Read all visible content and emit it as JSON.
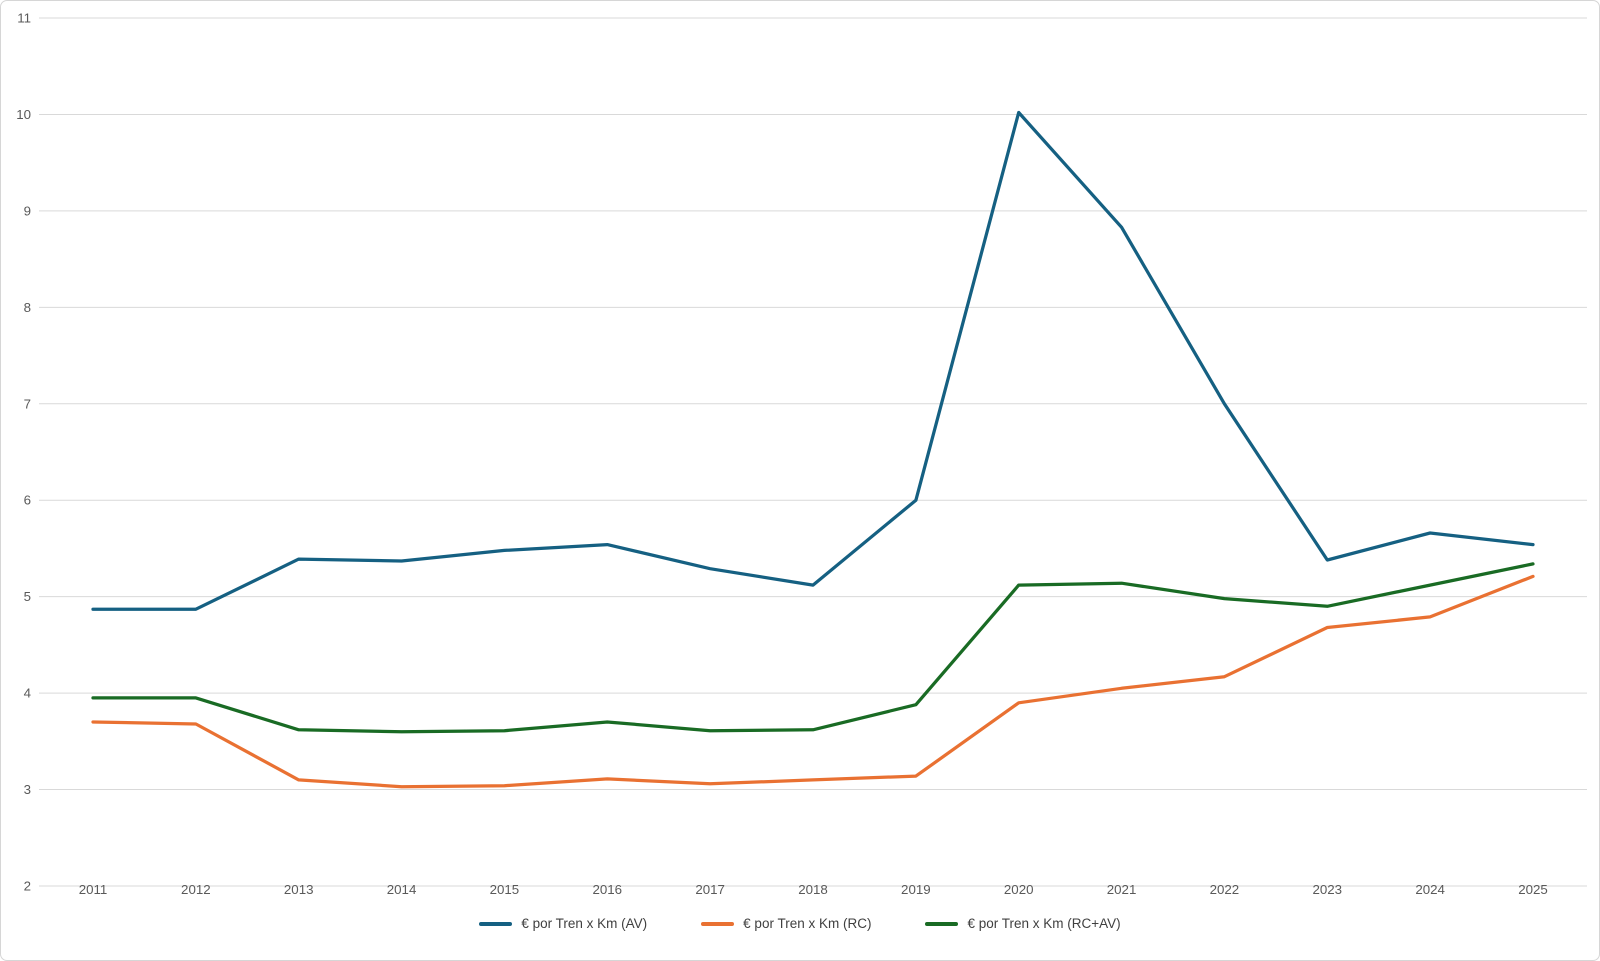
{
  "chart_data": {
    "type": "line",
    "title": "",
    "xlabel": "",
    "ylabel": "",
    "categories": [
      "2011",
      "2012",
      "2013",
      "2014",
      "2015",
      "2016",
      "2017",
      "2018",
      "2019",
      "2020",
      "2021",
      "2022",
      "2023",
      "2024",
      "2025"
    ],
    "series": [
      {
        "name": "€ por Tren x Km (AV)",
        "color": "#156082",
        "values": [
          4.87,
          4.87,
          5.39,
          5.37,
          5.48,
          5.54,
          5.29,
          5.12,
          6.0,
          10.02,
          8.83,
          7.0,
          5.38,
          5.66,
          5.54
        ]
      },
      {
        "name": "€ por Tren x Km (RC)",
        "color": "#E97132",
        "values": [
          3.7,
          3.68,
          3.1,
          3.03,
          3.04,
          3.11,
          3.06,
          3.1,
          3.14,
          3.9,
          4.05,
          4.17,
          4.68,
          4.79,
          5.21
        ]
      },
      {
        "name": "€ por Tren x Km (RC+AV)",
        "color": "#196B24",
        "values": [
          3.95,
          3.95,
          3.62,
          3.6,
          3.61,
          3.7,
          3.61,
          3.62,
          3.88,
          5.12,
          5.14,
          4.98,
          4.9,
          5.12,
          5.34
        ]
      }
    ],
    "ylim": [
      2,
      11
    ],
    "yticks": [
      "2",
      "3",
      "4",
      "5",
      "6",
      "7",
      "8",
      "9",
      "10",
      "11"
    ],
    "grid": true,
    "gridline_color": "#D9D9D9",
    "tick_label_color": "#595959",
    "legend_text_color": "#404040",
    "legend_position": "bottom-center"
  }
}
